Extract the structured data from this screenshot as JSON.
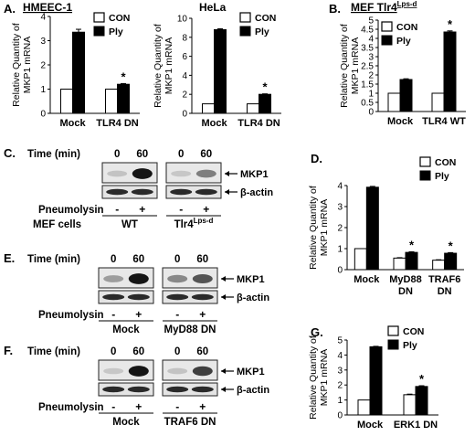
{
  "panels": {
    "A": "A.",
    "B": "B.",
    "C": "C.",
    "D": "D.",
    "E": "E.",
    "F": "F.",
    "G": "G."
  },
  "legend": {
    "con": "CON",
    "ply": "Ply"
  },
  "chart_data": [
    {
      "id": "A1",
      "type": "bar",
      "title": "HMEEC-1",
      "title_underline": true,
      "ylabel": [
        "Relative Quantity of",
        "MKP1 mRNA"
      ],
      "categories": [
        "Mock",
        "TLR4 DN"
      ],
      "yticks": [
        0,
        1,
        2,
        3,
        4
      ],
      "ylim": [
        0,
        4
      ],
      "series": [
        {
          "name": "CON",
          "values": [
            1.0,
            1.0
          ],
          "errors": [
            0,
            0
          ]
        },
        {
          "name": "Ply",
          "values": [
            3.35,
            1.2
          ],
          "errors": [
            0.12,
            0.03
          ]
        }
      ],
      "annotations": [
        {
          "category": 1,
          "series": 1,
          "text": "*"
        }
      ]
    },
    {
      "id": "A2",
      "type": "bar",
      "title": "HeLa",
      "title_underline": false,
      "ylabel": [
        "Relative Quantity of",
        "MKP1 mRNA"
      ],
      "categories": [
        "Mock",
        "TLR4 DN"
      ],
      "yticks": [
        0,
        2,
        4,
        6,
        8,
        10
      ],
      "ylim": [
        0,
        10
      ],
      "series": [
        {
          "name": "CON",
          "values": [
            1.0,
            1.0
          ],
          "errors": [
            0,
            0
          ]
        },
        {
          "name": "Ply",
          "values": [
            8.8,
            2.0
          ],
          "errors": [
            0.1,
            0.05
          ]
        }
      ],
      "annotations": [
        {
          "category": 1,
          "series": 1,
          "text": "*"
        }
      ]
    },
    {
      "id": "B",
      "type": "bar",
      "title": "MEF Tlr4",
      "title_sup": "Lps-d",
      "title_underline": true,
      "ylabel": [
        "Relative Quantity of",
        "MKP1 mRNA"
      ],
      "categories": [
        "Mock",
        "TLR4 WT"
      ],
      "yticks": [
        0,
        0.5,
        1,
        1.5,
        2,
        2.5,
        3,
        3.5,
        4,
        4.5,
        5
      ],
      "ylim": [
        0,
        5
      ],
      "series": [
        {
          "name": "CON",
          "values": [
            1.0,
            1.0
          ],
          "errors": [
            0,
            0
          ]
        },
        {
          "name": "Ply",
          "values": [
            1.75,
            4.35
          ],
          "errors": [
            0.04,
            0.06
          ]
        }
      ],
      "annotations": [
        {
          "category": 1,
          "series": 1,
          "text": "*"
        }
      ]
    },
    {
      "id": "D",
      "type": "bar",
      "title": "",
      "ylabel": [
        "Relative Quantity of",
        "MKP1 mRNA"
      ],
      "categories": [
        "Mock",
        "MyD88 DN",
        "TRAF6 DN"
      ],
      "yticks": [
        0,
        1,
        2,
        3,
        4
      ],
      "ylim": [
        0,
        4
      ],
      "series": [
        {
          "name": "CON",
          "values": [
            1.0,
            0.55,
            0.45
          ],
          "errors": [
            0,
            0.02,
            0.02
          ]
        },
        {
          "name": "Ply",
          "values": [
            3.92,
            0.82,
            0.78
          ],
          "errors": [
            0.04,
            0.03,
            0.03
          ]
        }
      ],
      "annotations": [
        {
          "category": 1,
          "series": 1,
          "text": "*"
        },
        {
          "category": 2,
          "series": 1,
          "text": "*"
        }
      ]
    },
    {
      "id": "G",
      "type": "bar",
      "title": "",
      "ylabel": [
        "Relative Quantity of",
        "MKP1 mRNA"
      ],
      "categories": [
        "Mock",
        "ERK1 DN"
      ],
      "yticks": [
        0,
        1,
        2,
        3,
        4,
        5
      ],
      "ylim": [
        0,
        5
      ],
      "series": [
        {
          "name": "CON",
          "values": [
            1.0,
            1.35
          ],
          "errors": [
            0,
            0.04
          ]
        },
        {
          "name": "Ply",
          "values": [
            4.55,
            1.9
          ],
          "errors": [
            0.03,
            0.05
          ]
        }
      ],
      "annotations": [
        {
          "category": 1,
          "series": 1,
          "text": "*"
        }
      ]
    }
  ],
  "blots": [
    {
      "id": "C",
      "time_label": "Time (min)",
      "times": [
        "0",
        "60",
        "0",
        "60"
      ],
      "bands": [
        "MKP1",
        "β-actin"
      ],
      "treatment_label": "Pneumolysin",
      "treatment": [
        "-",
        "+",
        "-",
        "+"
      ],
      "cells_label": "MEF cells",
      "groups": [
        "WT",
        "Tlr4"
      ],
      "group_sup": [
        "",
        "Lps-d"
      ],
      "mkp1_intensity": [
        0.12,
        0.95,
        0.1,
        0.45
      ]
    },
    {
      "id": "E",
      "time_label": "Time (min)",
      "times": [
        "0",
        "60",
        "0",
        "60"
      ],
      "bands": [
        "MKP1",
        "β-actin"
      ],
      "treatment_label": "Pneumolysin",
      "treatment": [
        "-",
        "+",
        "-",
        "+"
      ],
      "cells_label": "",
      "groups": [
        "Mock",
        "MyD88 DN"
      ],
      "group_sup": [
        "",
        ""
      ],
      "mkp1_intensity": [
        0.3,
        0.95,
        0.4,
        0.65
      ]
    },
    {
      "id": "F",
      "time_label": "Time (min)",
      "times": [
        "0",
        "60",
        "0",
        "60"
      ],
      "bands": [
        "MKP1",
        "β-actin"
      ],
      "treatment_label": "Pneumolysin",
      "treatment": [
        "-",
        "+",
        "-",
        "+"
      ],
      "cells_label": "",
      "groups": [
        "Mock",
        "TRAF6 DN"
      ],
      "group_sup": [
        "",
        ""
      ],
      "mkp1_intensity": [
        0.1,
        0.95,
        0.12,
        0.75
      ]
    }
  ]
}
